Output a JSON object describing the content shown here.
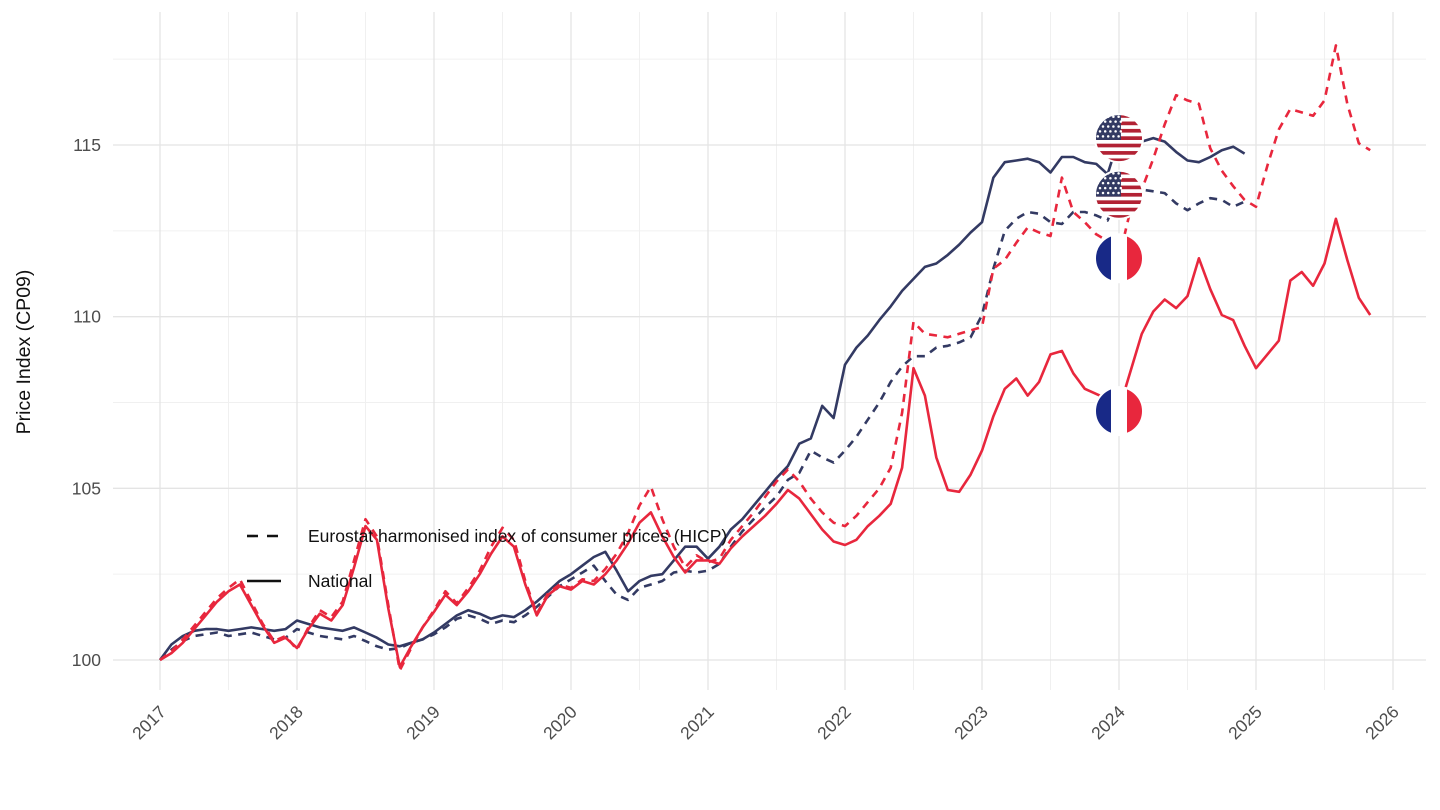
{
  "figure": {
    "y_axis_title": "Price Index (CP09)",
    "background_color": "#ffffff",
    "grid_major_color": "#e4e4e4",
    "grid_minor_color": "#f0f0f0",
    "tick_label_color": "#4d4d4d",
    "us_line_color": "#333a63",
    "fr_line_color": "#e8273d"
  },
  "legend": {
    "hicp_label": "Eurostat harmonised index of consumer prices (HICP)",
    "national_label": "National"
  },
  "chart_data": {
    "type": "line",
    "title": "",
    "xlabel": "",
    "ylabel": "Price Index (CP09)",
    "x_ticks": [
      2017,
      2018,
      2019,
      2020,
      2021,
      2022,
      2023,
      2024,
      2025,
      2026
    ],
    "y_ticks": [
      100,
      105,
      110,
      115
    ],
    "ylim": [
      98.9,
      118.9
    ],
    "xlim": [
      2016.65,
      2026.25
    ],
    "x_unit": "monthly, first point 2017-01, step 1/12 year",
    "grid": true,
    "legend_position": "inside-left",
    "series": [
      {
        "name": "United States National",
        "country": "US",
        "measure": "National",
        "color": "#333a63",
        "dash": "solid",
        "start_year": 2017,
        "values": [
          100.0,
          100.45,
          100.7,
          100.85,
          100.9,
          100.9,
          100.85,
          100.9,
          100.95,
          100.9,
          100.85,
          100.9,
          101.15,
          101.05,
          100.95,
          100.9,
          100.85,
          100.95,
          100.8,
          100.65,
          100.45,
          100.4,
          100.5,
          100.6,
          100.8,
          101.05,
          101.3,
          101.45,
          101.35,
          101.2,
          101.3,
          101.25,
          101.45,
          101.7,
          102.0,
          102.3,
          102.5,
          102.75,
          103.0,
          103.15,
          102.6,
          102.0,
          102.3,
          102.45,
          102.5,
          102.9,
          103.3,
          103.3,
          102.95,
          103.3,
          103.8,
          104.1,
          104.5,
          104.9,
          105.3,
          105.65,
          106.3,
          106.45,
          107.4,
          107.05,
          108.6,
          109.1,
          109.45,
          109.9,
          110.3,
          110.75,
          111.1,
          111.45,
          111.55,
          111.8,
          112.1,
          112.45,
          112.75,
          114.05,
          114.5,
          114.55,
          114.6,
          114.5,
          114.2,
          114.65,
          114.65,
          114.5,
          114.45,
          114.15,
          115.2,
          115.25,
          115.1,
          115.2,
          115.1,
          114.8,
          114.55,
          114.5,
          114.65,
          114.85,
          114.95,
          114.75
        ]
      },
      {
        "name": "United States HICP",
        "country": "US",
        "measure": "HICP",
        "color": "#333a63",
        "dash": "dashed",
        "start_year": 2017,
        "values": [
          100.0,
          100.3,
          100.55,
          100.7,
          100.75,
          100.8,
          100.7,
          100.75,
          100.8,
          100.7,
          100.6,
          100.65,
          100.9,
          100.8,
          100.7,
          100.65,
          100.6,
          100.7,
          100.55,
          100.4,
          100.3,
          100.35,
          100.5,
          100.6,
          100.75,
          100.95,
          101.2,
          101.3,
          101.2,
          101.05,
          101.15,
          101.1,
          101.3,
          101.55,
          101.85,
          102.15,
          102.35,
          102.55,
          102.75,
          102.3,
          101.9,
          101.75,
          102.1,
          102.2,
          102.3,
          102.55,
          102.6,
          102.55,
          102.6,
          102.8,
          103.3,
          103.75,
          104.1,
          104.45,
          104.76,
          105.25,
          105.45,
          106.1,
          105.9,
          105.75,
          106.1,
          106.5,
          107.0,
          107.5,
          108.1,
          108.55,
          108.85,
          108.85,
          109.1,
          109.15,
          109.25,
          109.4,
          110.05,
          111.4,
          112.5,
          112.85,
          113.05,
          113.0,
          112.75,
          112.7,
          113.05,
          113.05,
          112.95,
          112.8,
          113.6,
          113.75,
          113.7,
          113.65,
          113.6,
          113.3,
          113.1,
          113.3,
          113.45,
          113.4,
          113.2,
          113.35
        ]
      },
      {
        "name": "France National",
        "country": "FR",
        "measure": "National",
        "color": "#e8273d",
        "dash": "solid",
        "start_year": 2017,
        "values": [
          100.0,
          100.2,
          100.5,
          100.9,
          101.3,
          101.7,
          102.0,
          102.2,
          101.6,
          101.0,
          100.5,
          100.65,
          100.35,
          100.9,
          101.35,
          101.15,
          101.6,
          102.7,
          103.9,
          103.5,
          101.5,
          99.8,
          100.4,
          100.95,
          101.4,
          101.9,
          101.6,
          102.0,
          102.5,
          103.1,
          103.6,
          103.3,
          102.2,
          101.3,
          101.9,
          102.15,
          102.05,
          102.3,
          102.2,
          102.5,
          102.9,
          103.4,
          104.0,
          104.3,
          103.6,
          103.0,
          102.55,
          102.9,
          102.9,
          102.8,
          103.25,
          103.6,
          103.9,
          104.2,
          104.55,
          104.95,
          104.7,
          104.25,
          103.8,
          103.45,
          103.35,
          103.5,
          103.9,
          104.2,
          104.55,
          105.6,
          108.5,
          107.7,
          105.9,
          104.95,
          104.9,
          105.4,
          106.1,
          107.1,
          107.9,
          108.2,
          107.7,
          108.1,
          108.9,
          109.0,
          108.35,
          107.9,
          107.75,
          107.6,
          107.3,
          108.4,
          109.5,
          110.15,
          110.5,
          110.25,
          110.6,
          111.7,
          110.8,
          110.05,
          109.9,
          109.15,
          108.5,
          108.9,
          109.3,
          111.05,
          111.3,
          110.9,
          111.55,
          112.85,
          111.65,
          110.55,
          110.05
        ]
      },
      {
        "name": "France HICP",
        "country": "FR",
        "measure": "HICP",
        "color": "#e8273d",
        "dash": "dashed",
        "start_year": 2017,
        "values": [
          100.0,
          100.25,
          100.6,
          101.0,
          101.4,
          101.8,
          102.1,
          102.35,
          101.7,
          101.05,
          100.55,
          100.7,
          100.3,
          100.95,
          101.45,
          101.25,
          101.7,
          102.9,
          104.1,
          103.6,
          101.6,
          99.7,
          100.35,
          100.95,
          101.45,
          102.0,
          101.65,
          102.1,
          102.6,
          103.3,
          103.85,
          103.5,
          102.3,
          101.35,
          101.95,
          102.2,
          102.1,
          102.35,
          102.3,
          102.65,
          103.1,
          103.7,
          104.5,
          105.05,
          104.1,
          103.3,
          102.7,
          103.05,
          102.85,
          102.95,
          103.5,
          103.9,
          104.3,
          104.75,
          105.2,
          105.55,
          105.2,
          104.7,
          104.3,
          104.0,
          103.9,
          104.2,
          104.6,
          105.0,
          105.6,
          107.2,
          109.85,
          109.5,
          109.45,
          109.4,
          109.5,
          109.6,
          109.7,
          111.4,
          111.65,
          112.15,
          112.6,
          112.45,
          112.35,
          114.05,
          113.05,
          112.75,
          112.4,
          112.2,
          111.7,
          113.1,
          113.7,
          114.6,
          115.6,
          116.45,
          116.3,
          116.2,
          114.9,
          114.25,
          113.8,
          113.4,
          113.2,
          114.4,
          115.45,
          116.05,
          115.95,
          115.85,
          116.3,
          117.9,
          116.2,
          115.05,
          114.85
        ]
      }
    ],
    "flag_markers": [
      {
        "flag": "US",
        "at_year": 2024.0,
        "value": 115.2
      },
      {
        "flag": "US",
        "at_year": 2024.0,
        "value": 113.55
      },
      {
        "flag": "FR",
        "at_year": 2024.0,
        "value": 111.7
      },
      {
        "flag": "FR",
        "at_year": 2024.0,
        "value": 107.25
      }
    ]
  }
}
